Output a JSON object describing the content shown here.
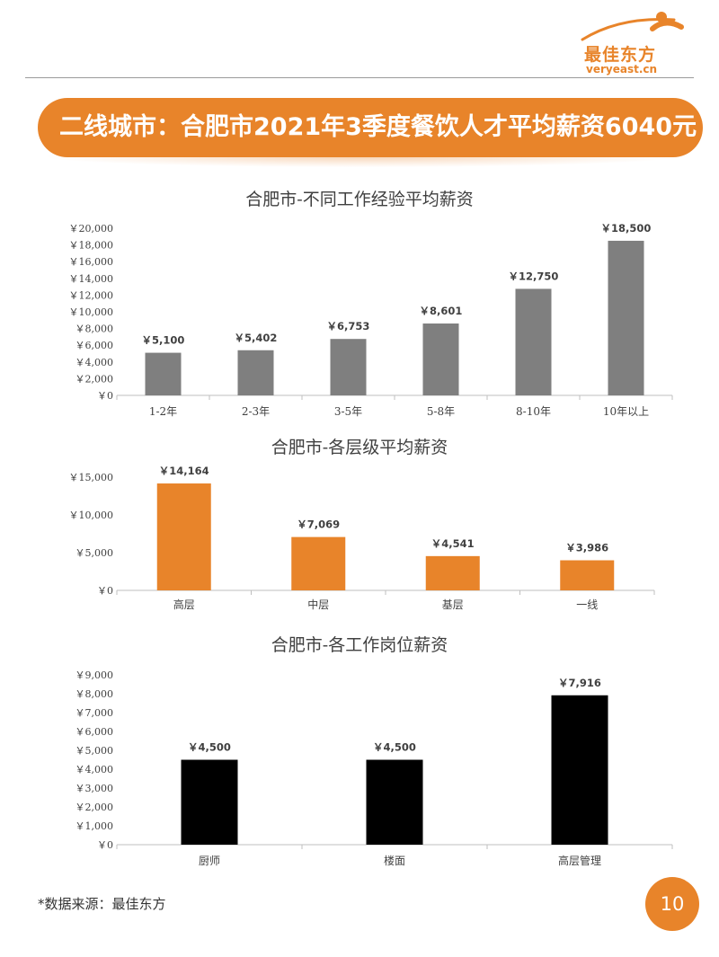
{
  "brand": {
    "name": "最佳东方",
    "domain": "veryeast.cn",
    "accent_color": "#e8842a"
  },
  "banner": {
    "title": "二线城市：合肥市2021年3季度餐饮人才平均薪资6040元"
  },
  "chart_data": [
    {
      "type": "bar",
      "title": "合肥市-不同工作经验平均薪资",
      "categories": [
        "1-2年",
        "2-3年",
        "3-5年",
        "5-8年",
        "8-10年",
        "10年以上"
      ],
      "values": [
        5100,
        5402,
        6753,
        8601,
        12750,
        18500
      ],
      "value_labels": [
        "￥5,100",
        "￥5,402",
        "￥6,753",
        "￥8,601",
        "￥12,750",
        "￥18,500"
      ],
      "yticks": [
        "￥0",
        "￥2,000",
        "￥4,000",
        "￥6,000",
        "￥8,000",
        "￥10,000",
        "￥12,000",
        "￥14,000",
        "￥16,000",
        "￥18,000",
        "￥20,000"
      ],
      "ylim": [
        0,
        20000
      ],
      "color": "#7f7f7f",
      "grid": false
    },
    {
      "type": "bar",
      "title": "合肥市-各层级平均薪资",
      "categories": [
        "高层",
        "中层",
        "基层",
        "一线"
      ],
      "values": [
        14164,
        7069,
        4541,
        3986
      ],
      "value_labels": [
        "￥14,164",
        "￥7,069",
        "￥4,541",
        "￥3,986"
      ],
      "yticks": [
        "￥0",
        "￥5,000",
        "￥10,000",
        "￥15,000"
      ],
      "ylim": [
        0,
        15000
      ],
      "color": "#e8842a",
      "grid": false
    },
    {
      "type": "bar",
      "title": "合肥市-各工作岗位薪资",
      "categories": [
        "厨师",
        "楼面",
        "高层管理"
      ],
      "values": [
        4500,
        4500,
        7916
      ],
      "value_labels": [
        "￥4,500",
        "￥4,500",
        "￥7,916"
      ],
      "yticks": [
        "￥0",
        "￥1,000",
        "￥2,000",
        "￥3,000",
        "￥4,000",
        "￥5,000",
        "￥6,000",
        "￥7,000",
        "￥8,000",
        "￥9,000"
      ],
      "ylim": [
        0,
        9000
      ],
      "color": "#000000",
      "grid": false
    }
  ],
  "footer": {
    "source": "*数据来源：最佳东方",
    "page_number": "10"
  }
}
